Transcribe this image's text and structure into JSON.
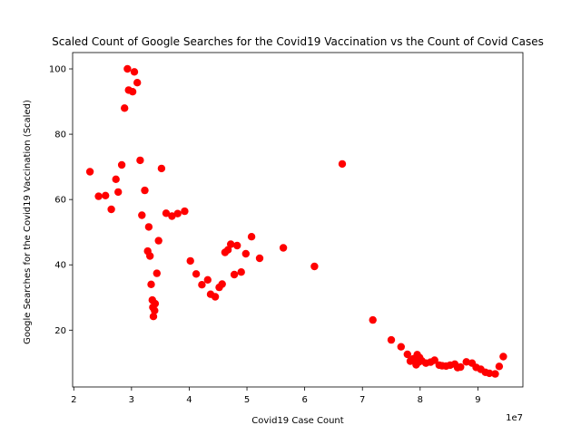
{
  "chart_data": {
    "type": "scatter",
    "title": "Scaled Count of Google Searches for the Covid19 Vaccination vs the Count of Covid Cases",
    "xlabel": "Covid19 Case Count",
    "ylabel": "Google Searches for the Covid19 Vaccination (Scaled)",
    "x_offset_label": "1e7",
    "x_scale": 10000000,
    "xlim": [
      1.98,
      9.78
    ],
    "ylim": [
      2.6,
      105.0
    ],
    "xticks": [
      2,
      3,
      4,
      5,
      6,
      7,
      8,
      9
    ],
    "yticks": [
      20,
      40,
      60,
      80,
      100
    ],
    "grid": false,
    "marker_color": "#ff0000",
    "points": [
      [
        2.28,
        68.5
      ],
      [
        2.43,
        61.0
      ],
      [
        2.55,
        61.2
      ],
      [
        2.65,
        57.0
      ],
      [
        2.73,
        66.2
      ],
      [
        2.77,
        62.3
      ],
      [
        2.83,
        70.6
      ],
      [
        2.88,
        88.0
      ],
      [
        2.93,
        100.0
      ],
      [
        2.95,
        93.5
      ],
      [
        3.02,
        93.0
      ],
      [
        3.05,
        99.1
      ],
      [
        3.1,
        95.8
      ],
      [
        3.15,
        72.0
      ],
      [
        3.18,
        55.2
      ],
      [
        3.23,
        62.8
      ],
      [
        3.28,
        44.2
      ],
      [
        3.3,
        51.6
      ],
      [
        3.32,
        42.7
      ],
      [
        3.34,
        34.0
      ],
      [
        3.36,
        29.2
      ],
      [
        3.37,
        27.0
      ],
      [
        3.38,
        24.2
      ],
      [
        3.4,
        26.0
      ],
      [
        3.41,
        28.1
      ],
      [
        3.44,
        37.4
      ],
      [
        3.47,
        47.4
      ],
      [
        3.52,
        69.5
      ],
      [
        3.6,
        55.8
      ],
      [
        3.7,
        54.9
      ],
      [
        3.8,
        55.7
      ],
      [
        3.92,
        56.4
      ],
      [
        4.02,
        41.2
      ],
      [
        4.12,
        37.2
      ],
      [
        4.22,
        33.9
      ],
      [
        4.32,
        35.4
      ],
      [
        4.37,
        31.0
      ],
      [
        4.45,
        30.2
      ],
      [
        4.52,
        33.1
      ],
      [
        4.57,
        34.1
      ],
      [
        4.62,
        43.8
      ],
      [
        4.67,
        44.6
      ],
      [
        4.72,
        46.3
      ],
      [
        4.78,
        37.0
      ],
      [
        4.83,
        45.9
      ],
      [
        4.9,
        37.8
      ],
      [
        4.98,
        43.4
      ],
      [
        5.08,
        48.6
      ],
      [
        5.22,
        42.0
      ],
      [
        5.63,
        45.2
      ],
      [
        6.17,
        39.5
      ],
      [
        6.65,
        70.9
      ],
      [
        7.18,
        23.1
      ],
      [
        7.5,
        17.0
      ],
      [
        7.67,
        14.9
      ],
      [
        7.78,
        12.6
      ],
      [
        7.83,
        10.5
      ],
      [
        7.88,
        11.2
      ],
      [
        7.93,
        9.4
      ],
      [
        7.95,
        12.5
      ],
      [
        7.97,
        10.2
      ],
      [
        7.99,
        11.6
      ],
      [
        8.03,
        10.6
      ],
      [
        8.1,
        9.9
      ],
      [
        8.18,
        10.2
      ],
      [
        8.25,
        10.8
      ],
      [
        8.33,
        9.3
      ],
      [
        8.38,
        9.1
      ],
      [
        8.45,
        9.0
      ],
      [
        8.52,
        9.3
      ],
      [
        8.6,
        9.6
      ],
      [
        8.65,
        8.5
      ],
      [
        8.7,
        8.7
      ],
      [
        8.8,
        10.3
      ],
      [
        8.9,
        9.9
      ],
      [
        8.97,
        8.6
      ],
      [
        9.05,
        8.0
      ],
      [
        9.13,
        7.1
      ],
      [
        9.2,
        6.8
      ],
      [
        9.3,
        6.6
      ],
      [
        9.37,
        8.9
      ],
      [
        9.44,
        11.9
      ]
    ]
  }
}
